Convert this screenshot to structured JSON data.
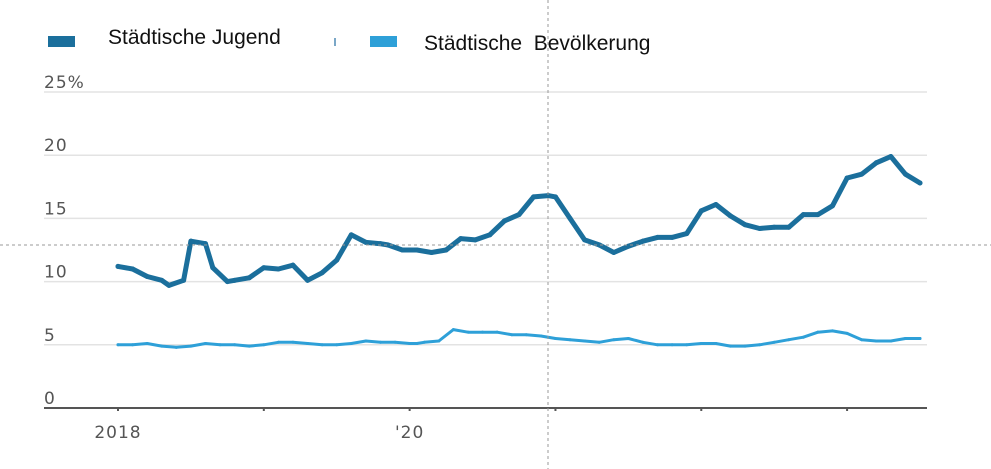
{
  "chart_data": {
    "type": "line",
    "ylim": [
      0,
      25
    ],
    "y_ticks": [
      0,
      5,
      10,
      15,
      20,
      25
    ],
    "y_tick_labels": [
      "0",
      "5",
      "10",
      "15",
      "20",
      "25%"
    ],
    "x_tick_labels": [
      "2018",
      "'20"
    ],
    "x_range": [
      2018.0,
      2023.5
    ],
    "grid": true,
    "legend_placement": "top-left",
    "series": [
      {
        "name": "Städtische Jugend",
        "color": "#1b6f9c",
        "x": [
          2018.0,
          2018.1,
          2018.2,
          2018.3,
          2018.35,
          2018.45,
          2018.5,
          2018.6,
          2018.65,
          2018.75,
          2018.8,
          2018.9,
          2019.0,
          2019.1,
          2019.2,
          2019.3,
          2019.4,
          2019.5,
          2019.6,
          2019.7,
          2019.8,
          2019.85,
          2019.95,
          2020.05,
          2020.15,
          2020.25,
          2020.35,
          2020.45,
          2020.55,
          2020.65,
          2020.75,
          2020.85,
          2020.95,
          2021.0,
          2021.1,
          2021.2,
          2021.3,
          2021.4,
          2021.5,
          2021.6,
          2021.7,
          2021.8,
          2021.9,
          2022.0,
          2022.1,
          2022.2,
          2022.3,
          2022.4,
          2022.5,
          2022.6,
          2022.7,
          2022.8,
          2022.9,
          2023.0,
          2023.1,
          2023.2,
          2023.3,
          2023.4,
          2023.5
        ],
        "values": [
          11.2,
          11.0,
          10.4,
          10.1,
          9.7,
          10.1,
          13.2,
          13.0,
          11.1,
          10.0,
          10.1,
          10.3,
          11.1,
          11.0,
          11.3,
          10.1,
          10.7,
          11.7,
          13.7,
          13.1,
          13.0,
          12.9,
          12.5,
          12.5,
          12.3,
          12.5,
          13.4,
          13.3,
          13.7,
          14.8,
          15.3,
          16.7,
          16.8,
          16.7,
          15.0,
          13.3,
          12.9,
          12.3,
          12.8,
          13.2,
          13.5,
          13.5,
          13.8,
          15.6,
          16.1,
          15.2,
          14.5,
          14.2,
          14.3,
          14.3,
          15.3,
          15.3,
          16.0,
          18.2,
          18.5,
          19.4,
          19.9,
          18.5,
          17.8
        ]
      },
      {
        "name": "Städtische  Bevölkerung",
        "color": "#2ea0d8",
        "x": [
          2018.0,
          2018.1,
          2018.2,
          2018.3,
          2018.4,
          2018.5,
          2018.6,
          2018.7,
          2018.8,
          2018.9,
          2019.0,
          2019.1,
          2019.2,
          2019.3,
          2019.4,
          2019.5,
          2019.6,
          2019.7,
          2019.8,
          2019.9,
          2020.0,
          2020.05,
          2020.1,
          2020.2,
          2020.3,
          2020.4,
          2020.5,
          2020.6,
          2020.7,
          2020.8,
          2020.9,
          2021.0,
          2021.1,
          2021.2,
          2021.3,
          2021.4,
          2021.5,
          2021.6,
          2021.7,
          2021.8,
          2021.9,
          2022.0,
          2022.1,
          2022.2,
          2022.3,
          2022.4,
          2022.5,
          2022.6,
          2022.7,
          2022.8,
          2022.9,
          2023.0,
          2023.1,
          2023.2,
          2023.3,
          2023.4,
          2023.5
        ],
        "values": [
          5.0,
          5.0,
          5.1,
          4.9,
          4.8,
          4.9,
          5.1,
          5.0,
          5.0,
          4.9,
          5.0,
          5.2,
          5.2,
          5.1,
          5.0,
          5.0,
          5.1,
          5.3,
          5.2,
          5.2,
          5.1,
          5.1,
          5.2,
          5.3,
          6.2,
          6.0,
          6.0,
          6.0,
          5.8,
          5.8,
          5.7,
          5.5,
          5.4,
          5.3,
          5.2,
          5.4,
          5.5,
          5.2,
          5.0,
          5.0,
          5.0,
          5.1,
          5.1,
          4.9,
          4.9,
          5.0,
          5.2,
          5.4,
          5.6,
          6.0,
          6.1,
          5.9,
          5.4,
          5.3,
          5.3,
          5.5,
          5.5
        ]
      }
    ]
  }
}
